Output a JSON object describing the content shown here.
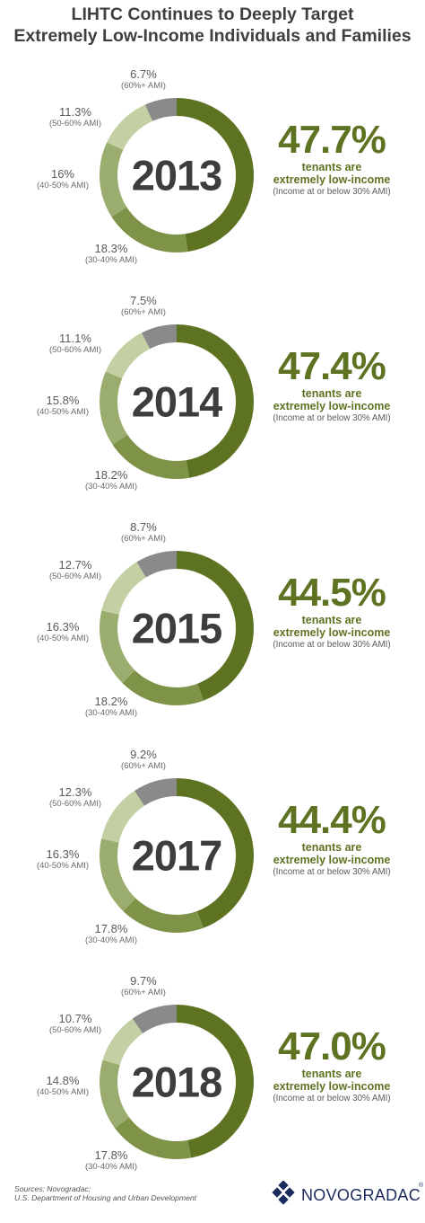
{
  "title": {
    "line1": "LIHTC Continues to Deeply Target",
    "line2": "Extremely Low-Income Individuals and Families"
  },
  "colors": {
    "extremely_low": "#5e7321",
    "ami_30_40": "#7f9348",
    "ami_40_50": "#9bad6e",
    "ami_50_60": "#c3d0a3",
    "ami_60_plus": "#8a8a8a"
  },
  "chart_data": [
    {
      "type": "donut",
      "year": "2013",
      "extremely_low": {
        "value": "47.7%",
        "line1": "tenants are",
        "line2": "extremely low-income",
        "line3": "(Income at or below 30% AMI)"
      },
      "segments": [
        {
          "key": "extremely_low",
          "value": 47.7
        },
        {
          "key": "ami_30_40",
          "value": 18.3,
          "pct": "18.3%",
          "label": "(30-40% AMI)"
        },
        {
          "key": "ami_40_50",
          "value": 16.0,
          "pct": "16%",
          "label": "(40-50% AMI)"
        },
        {
          "key": "ami_50_60",
          "value": 11.3,
          "pct": "11.3%",
          "label": "(50-60% AMI)"
        },
        {
          "key": "ami_60_plus",
          "value": 6.7,
          "pct": "6.7%",
          "label": "(60%+ AMI)"
        }
      ]
    },
    {
      "type": "donut",
      "year": "2014",
      "extremely_low": {
        "value": "47.4%",
        "line1": "tenants are",
        "line2": "extremely low-income",
        "line3": "(Income at or below 30% AMI)"
      },
      "segments": [
        {
          "key": "extremely_low",
          "value": 47.4
        },
        {
          "key": "ami_30_40",
          "value": 18.2,
          "pct": "18.2%",
          "label": "(30-40% AMI)"
        },
        {
          "key": "ami_40_50",
          "value": 15.8,
          "pct": "15.8%",
          "label": "(40-50% AMI)"
        },
        {
          "key": "ami_50_60",
          "value": 11.1,
          "pct": "11.1%",
          "label": "(50-60% AMI)"
        },
        {
          "key": "ami_60_plus",
          "value": 7.5,
          "pct": "7.5%",
          "label": "(60%+ AMI)"
        }
      ]
    },
    {
      "type": "donut",
      "year": "2015",
      "extremely_low": {
        "value": "44.5%",
        "line1": "tenants are",
        "line2": "extremely low-income",
        "line3": "(Income at or below 30% AMI)"
      },
      "segments": [
        {
          "key": "extremely_low",
          "value": 44.5
        },
        {
          "key": "ami_30_40",
          "value": 18.2,
          "pct": "18.2%",
          "label": "(30-40% AMI)"
        },
        {
          "key": "ami_40_50",
          "value": 16.3,
          "pct": "16.3%",
          "label": "(40-50% AMI)"
        },
        {
          "key": "ami_50_60",
          "value": 12.7,
          "pct": "12.7%",
          "label": "(50-60% AMI)"
        },
        {
          "key": "ami_60_plus",
          "value": 8.7,
          "pct": "8.7%",
          "label": "(60%+ AMI)"
        }
      ]
    },
    {
      "type": "donut",
      "year": "2017",
      "extremely_low": {
        "value": "44.4%",
        "line1": "tenants are",
        "line2": "extremely low-income",
        "line3": "(Income at or below 30% AMI)"
      },
      "segments": [
        {
          "key": "extremely_low",
          "value": 44.4
        },
        {
          "key": "ami_30_40",
          "value": 17.8,
          "pct": "17.8%",
          "label": "(30-40% AMI)"
        },
        {
          "key": "ami_40_50",
          "value": 16.3,
          "pct": "16.3%",
          "label": "(40-50% AMI)"
        },
        {
          "key": "ami_50_60",
          "value": 12.3,
          "pct": "12.3%",
          "label": "(50-60% AMI)"
        },
        {
          "key": "ami_60_plus",
          "value": 9.2,
          "pct": "9.2%",
          "label": "(60%+ AMI)"
        }
      ]
    },
    {
      "type": "donut",
      "year": "2018",
      "extremely_low": {
        "value": "47.0%",
        "line1": "tenants are",
        "line2": "extremely low-income",
        "line3": "(Income at or below 30% AMI)"
      },
      "segments": [
        {
          "key": "extremely_low",
          "value": 47.0
        },
        {
          "key": "ami_30_40",
          "value": 17.8,
          "pct": "17.8%",
          "label": "(30-40% AMI)"
        },
        {
          "key": "ami_40_50",
          "value": 14.8,
          "pct": "14.8%",
          "label": "(40-50% AMI)"
        },
        {
          "key": "ami_50_60",
          "value": 10.7,
          "pct": "10.7%",
          "label": "(50-60% AMI)"
        },
        {
          "key": "ami_60_plus",
          "value": 9.7,
          "pct": "9.7%",
          "label": "(60%+ AMI)"
        }
      ]
    }
  ],
  "source": {
    "line1": "Sources: Novogradac;",
    "line2": "U.S. Department of Housing and Urban Development"
  },
  "logo": {
    "text": "NOVOGRADAC",
    "reg": "®"
  }
}
